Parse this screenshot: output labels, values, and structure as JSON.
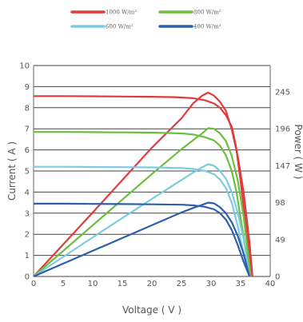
{
  "chart_data": {
    "type": "line",
    "xlabel": "Voltage ( V )",
    "ylabel": "Current ( A )",
    "y2label": "Power ( W )",
    "xlim": [
      0,
      40
    ],
    "ylim": [
      0,
      10
    ],
    "y2lim": [
      0,
      280
    ],
    "xticks": [
      "0",
      "5",
      "10",
      "15",
      "20",
      "25",
      "30",
      "35",
      "40"
    ],
    "yticks": [
      "0",
      "1",
      "2",
      "3",
      "4",
      "5",
      "6",
      "7",
      "8",
      "9",
      "10"
    ],
    "y2ticks": [
      {
        "value": 0,
        "label": "0"
      },
      {
        "value": 49,
        "label": "49"
      },
      {
        "value": 98,
        "label": "98"
      },
      {
        "value": 147,
        "label": "147"
      },
      {
        "value": 196,
        "label": "196"
      },
      {
        "value": 245,
        "label": "245"
      }
    ],
    "grid": "horizontal",
    "legend_position": "top",
    "series": [
      {
        "name": "1000 W/m²",
        "color": "#e23b3b",
        "current": {
          "x": [
            0,
            5,
            10,
            15,
            20,
            24,
            27,
            29,
            30.5,
            31.5,
            32.5,
            33.5,
            34.2,
            35,
            35.8,
            36.6,
            37
          ],
          "y": [
            8.55,
            8.55,
            8.54,
            8.53,
            8.52,
            8.5,
            8.45,
            8.35,
            8.2,
            8.0,
            7.65,
            7.1,
            6.2,
            4.5,
            2.6,
            0.8,
            0
          ]
        },
        "power": {
          "x": [
            0,
            10,
            20,
            25,
            27,
            28.5,
            29.5,
            30.5,
            31.5,
            32.5,
            33.5,
            34.5,
            35.5,
            36.5,
            37
          ],
          "y": [
            0,
            85,
            171,
            210,
            230,
            240,
            244,
            240,
            232,
            220,
            195,
            160,
            112,
            45,
            0
          ]
        }
      },
      {
        "name": "800 W/m²",
        "color": "#6bbf3f",
        "current": {
          "x": [
            0,
            5,
            10,
            15,
            20,
            25,
            27,
            29,
            30.5,
            31.5,
            32.5,
            33.5,
            34.3,
            35.1,
            35.9,
            36.7
          ],
          "y": [
            6.85,
            6.85,
            6.84,
            6.83,
            6.82,
            6.78,
            6.73,
            6.6,
            6.45,
            6.2,
            5.75,
            5.0,
            4.0,
            2.6,
            1.2,
            0
          ]
        },
        "power": {
          "x": [
            0,
            10,
            20,
            25,
            27,
            28.5,
            29.5,
            30.5,
            31.5,
            32.5,
            33.5,
            34.5,
            35.5,
            36.7
          ],
          "y": [
            0,
            68,
            136,
            169,
            181,
            190,
            197,
            196,
            190,
            180,
            160,
            128,
            80,
            0
          ]
        }
      },
      {
        "name": "600 W/m²",
        "color": "#7ccbe0",
        "current": {
          "x": [
            0,
            5,
            10,
            15,
            20,
            25,
            27,
            29,
            30.5,
            31.5,
            32.5,
            33.5,
            34.5,
            35.5,
            36.5
          ],
          "y": [
            5.2,
            5.2,
            5.19,
            5.18,
            5.17,
            5.14,
            5.1,
            5.0,
            4.85,
            4.6,
            4.2,
            3.5,
            2.4,
            1.1,
            0
          ]
        },
        "power": {
          "x": [
            0,
            10,
            20,
            25,
            27,
            28.5,
            29.5,
            30.5,
            31.5,
            32.5,
            33.5,
            34.5,
            35.5,
            36.5
          ],
          "y": [
            0,
            52,
            103,
            128,
            138,
            145,
            149,
            147,
            140,
            130,
            112,
            85,
            50,
            0
          ]
        }
      },
      {
        "name": "400 W/m²",
        "color": "#2c5fad",
        "current": {
          "x": [
            0,
            5,
            10,
            15,
            20,
            25,
            27,
            29,
            30.5,
            31.5,
            32.5,
            33.5,
            34.5,
            35.5,
            36.5
          ],
          "y": [
            3.45,
            3.45,
            3.44,
            3.43,
            3.42,
            3.4,
            3.37,
            3.3,
            3.18,
            3.0,
            2.7,
            2.2,
            1.5,
            0.7,
            0
          ]
        },
        "power": {
          "x": [
            0,
            10,
            20,
            25,
            27,
            28.5,
            29.5,
            30.5,
            31.5,
            32.5,
            33.5,
            34.5,
            35.5,
            36.5
          ],
          "y": [
            0,
            34,
            68,
            85,
            91,
            95,
            98,
            97,
            92,
            84,
            72,
            54,
            30,
            0
          ]
        }
      }
    ]
  }
}
